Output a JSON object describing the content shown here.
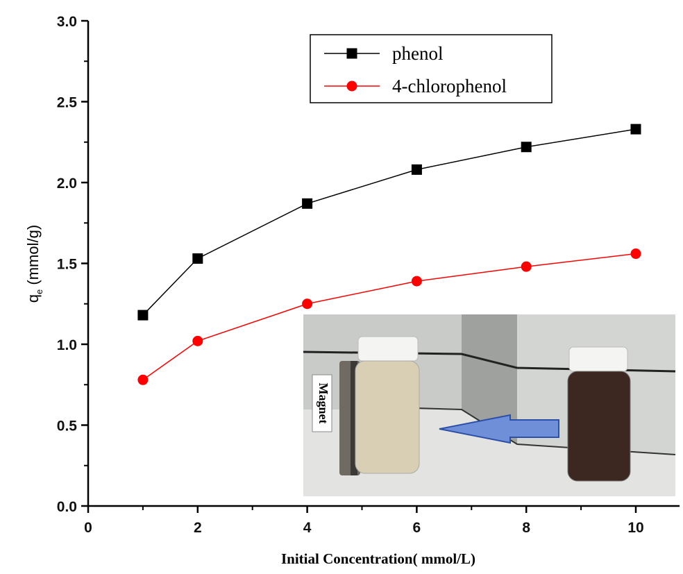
{
  "chart_data": {
    "type": "line",
    "x_label": "Initial Concentration( mmol/L)",
    "y_label": "q",
    "y_label_subscript": "e",
    "y_label_unit": "(mmol/g)",
    "x": [
      1,
      2,
      4,
      6,
      8,
      10
    ],
    "series": [
      {
        "name": "phenol",
        "color": "#000000",
        "marker": "square",
        "values": [
          1.18,
          1.53,
          1.87,
          2.08,
          2.22,
          2.33
        ]
      },
      {
        "name": "4-chlorophenol",
        "color": "#ff0000",
        "marker": "circle",
        "values": [
          0.78,
          1.02,
          1.25,
          1.39,
          1.48,
          1.56
        ]
      }
    ],
    "xlim": [
      0,
      10.8
    ],
    "ylim": [
      0,
      3.0
    ],
    "xticks": [
      0,
      2,
      4,
      6,
      8,
      10
    ],
    "x_minor_ticks": [
      1,
      3,
      5,
      7,
      9
    ],
    "yticks": [
      {
        "value": 0,
        "label": "0.0"
      },
      {
        "value": 0.5,
        "label": "0.5"
      },
      {
        "value": 1,
        "label": "1.0"
      },
      {
        "value": 1.5,
        "label": "1.5"
      },
      {
        "value": 2,
        "label": "2.0"
      },
      {
        "value": 2.5,
        "label": "2.5"
      },
      {
        "value": 3,
        "label": "3.0"
      }
    ],
    "y_minor_ticks": [
      0.25,
      0.75,
      1.25,
      1.75,
      2.25,
      2.75
    ],
    "grid": false,
    "legend": "top-center",
    "inset_label": "Magnet"
  }
}
